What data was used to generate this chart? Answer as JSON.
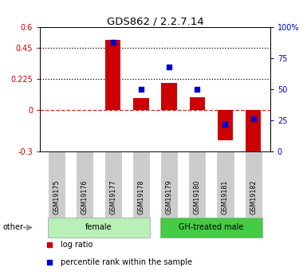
{
  "title": "GDS862 / 2.2.7.14",
  "samples": [
    "GSM19175",
    "GSM19176",
    "GSM19177",
    "GSM19178",
    "GSM19179",
    "GSM19180",
    "GSM19181",
    "GSM19182"
  ],
  "log_ratio": [
    0.0,
    0.0,
    0.51,
    0.085,
    0.195,
    0.095,
    -0.22,
    -0.325
  ],
  "percentile_rank": [
    null,
    null,
    88,
    50,
    68,
    50,
    22,
    26
  ],
  "ylim_left": [
    -0.3,
    0.6
  ],
  "ylim_right": [
    0,
    100
  ],
  "yticks_left": [
    -0.3,
    0.0,
    0.225,
    0.45,
    0.6
  ],
  "ytick_labels_left": [
    "-0.3",
    "0",
    "0.225",
    "0.45",
    "0.6"
  ],
  "yticks_right": [
    0,
    25,
    50,
    75,
    100
  ],
  "ytick_labels_right": [
    "0",
    "25",
    "50",
    "75",
    "100%"
  ],
  "hlines": [
    0.225,
    0.45
  ],
  "dashed_zero": 0.0,
  "bar_color": "#cc0000",
  "dot_color": "#0000cc",
  "left_tick_color": "#cc0000",
  "right_tick_color": "#0000cc",
  "groups": [
    {
      "label": "female",
      "start": 0,
      "end": 3,
      "color": "#b8f0b8"
    },
    {
      "label": "GH-treated male",
      "start": 4,
      "end": 7,
      "color": "#44cc44"
    }
  ],
  "other_label": "other",
  "bg_color": "#ffffff",
  "tick_area_color": "#cccccc",
  "bar_width": 0.55,
  "legend": [
    "log ratio",
    "percentile rank within the sample"
  ]
}
